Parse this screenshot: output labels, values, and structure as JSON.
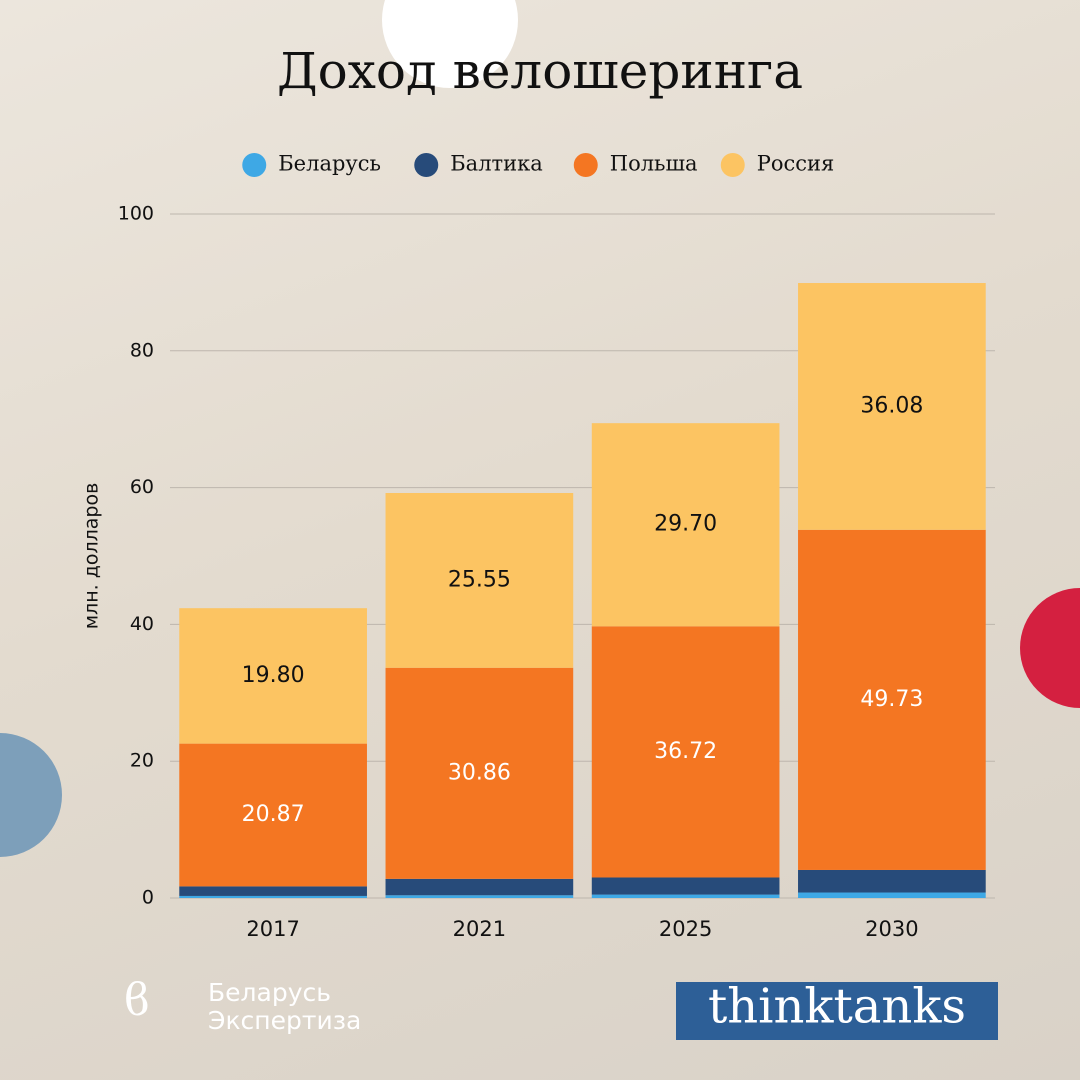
{
  "chart_data": {
    "type": "stacked_bar",
    "title": "Доход велошеринга",
    "y_label": "млн. долларов",
    "categories": [
      "2017",
      "2021",
      "2025",
      "2030"
    ],
    "series": [
      {
        "name": "Беларусь",
        "color": "#3ea8e5",
        "values": [
          0.3,
          0.4,
          0.5,
          0.8
        ]
      },
      {
        "name": "Балтика",
        "color": "#274b7a",
        "values": [
          1.4,
          2.4,
          2.5,
          3.3
        ]
      },
      {
        "name": "Польша",
        "color": "#f47622",
        "values": [
          20.87,
          30.86,
          36.72,
          49.73
        ],
        "value_labels": [
          "20.87",
          "30.86",
          "36.72",
          "49.73"
        ]
      },
      {
        "name": "Россия",
        "color": "#fcc462",
        "values": [
          19.8,
          25.55,
          29.7,
          36.08
        ],
        "value_labels": [
          "19.80",
          "25.55",
          "29.70",
          "36.08"
        ]
      }
    ],
    "ylim": [
      0,
      100
    ],
    "yticks": [
      0,
      20,
      40,
      60,
      80,
      100
    ],
    "grid": true,
    "legend": "top"
  },
  "footer": {
    "org": [
      "Беларусь",
      "Экспертиза"
    ],
    "brand": "thinktanks"
  }
}
